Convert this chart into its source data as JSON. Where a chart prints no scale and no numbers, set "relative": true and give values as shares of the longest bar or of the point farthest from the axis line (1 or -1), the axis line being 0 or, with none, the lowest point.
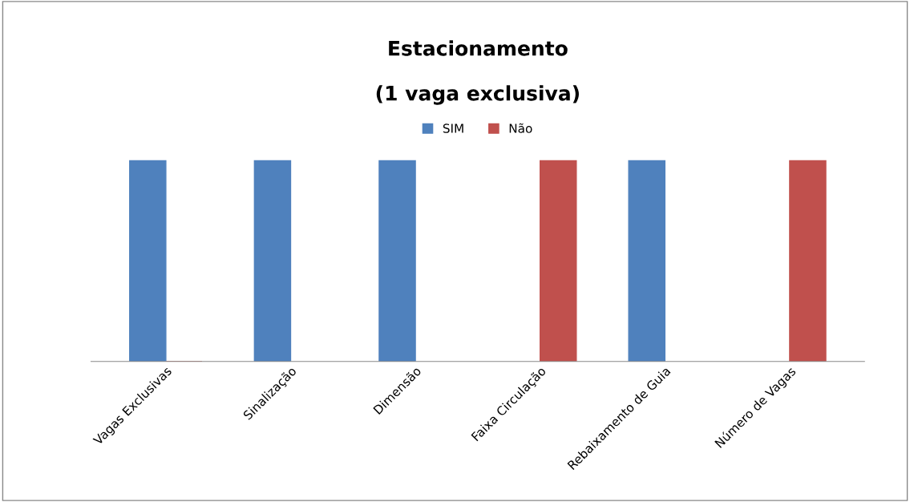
{
  "chart_data": {
    "type": "bar",
    "title": "Estacionamento\n\n(1 vaga exclusiva)",
    "relative": true,
    "categories": [
      "Vagas Exclusivas",
      "Sinalização",
      "Dimensão",
      "Faixa Circulação",
      "Rebaixamento de Guia",
      "Número de Vagas"
    ],
    "series": [
      {
        "name": "SIM",
        "color": "#4f81bd",
        "values": [
          1,
          1,
          1,
          null,
          1,
          null
        ]
      },
      {
        "name": "Não",
        "color": "#c0504d",
        "values": [
          0,
          null,
          null,
          1,
          null,
          1
        ]
      }
    ],
    "legend": "top",
    "grid": false
  }
}
